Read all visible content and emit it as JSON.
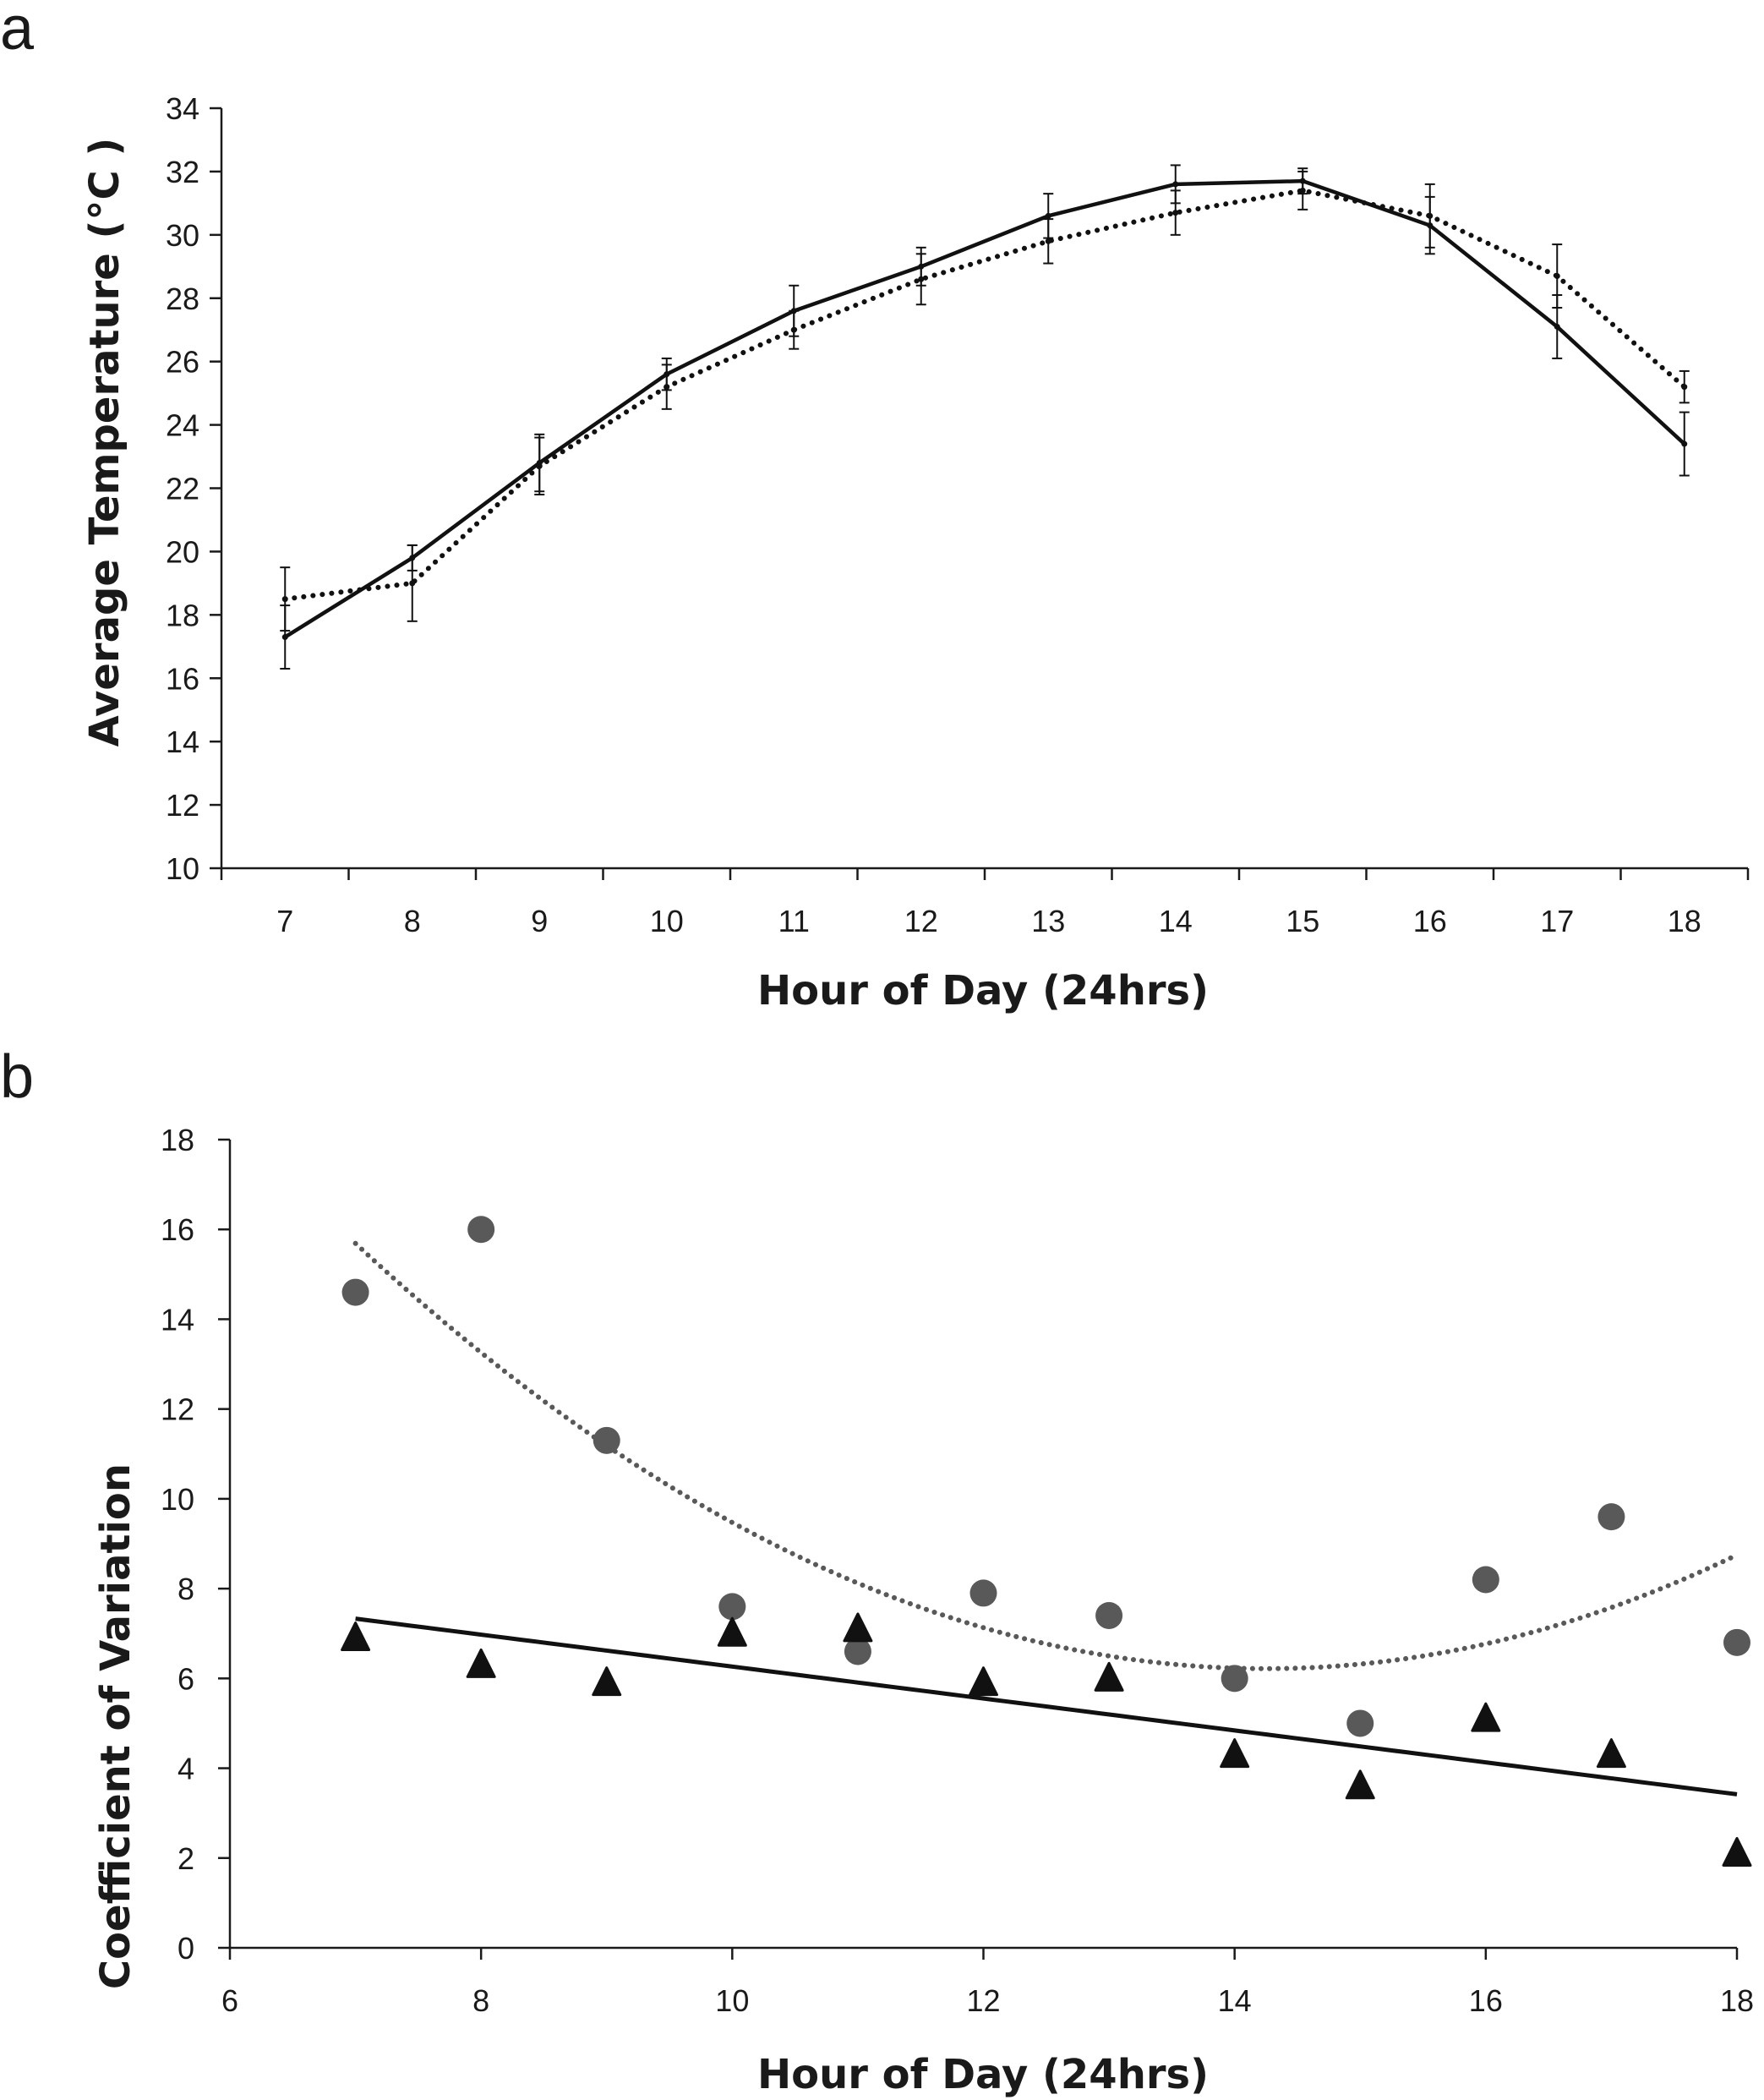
{
  "chart_data": [
    {
      "panel": "a",
      "type": "line",
      "xlabel": "Hour of Day (24hrs)",
      "ylabel": "Average Temperature (°C )",
      "categories": [
        7,
        8,
        9,
        10,
        11,
        12,
        13,
        14,
        15,
        16,
        17,
        18
      ],
      "ylim": [
        10,
        34
      ],
      "yticks": [
        10,
        12,
        14,
        16,
        18,
        20,
        22,
        24,
        26,
        28,
        30,
        32,
        34
      ],
      "grid": false,
      "series": [
        {
          "style": "solid",
          "color": "#111111",
          "values": [
            17.3,
            19.8,
            22.8,
            25.6,
            27.6,
            29.0,
            30.6,
            31.6,
            31.7,
            30.3,
            27.1,
            23.4
          ],
          "error": [
            1.0,
            0.4,
            0.9,
            0.5,
            0.8,
            0.6,
            0.7,
            0.6,
            0.4,
            0.9,
            1.0,
            1.0
          ]
        },
        {
          "style": "dotted",
          "color": "#111111",
          "values": [
            18.5,
            19.0,
            22.7,
            25.2,
            27.0,
            28.6,
            29.8,
            30.7,
            31.4,
            30.6,
            28.7,
            25.2
          ],
          "error": [
            1.0,
            1.2,
            0.9,
            0.7,
            0.6,
            0.8,
            0.7,
            0.7,
            0.6,
            1.0,
            1.0,
            0.5
          ]
        }
      ]
    },
    {
      "panel": "b",
      "type": "scatter",
      "xlabel": "Hour of Day (24hrs)",
      "ylabel": "Coefficient of Variation",
      "xlim": [
        6,
        18
      ],
      "xticks": [
        6,
        8,
        10,
        12,
        14,
        16,
        18
      ],
      "ylim": [
        0,
        18
      ],
      "yticks": [
        0,
        2,
        4,
        6,
        8,
        10,
        12,
        14,
        16,
        18
      ],
      "grid": false,
      "series": [
        {
          "marker": "circle",
          "color": "#595959",
          "trendline": "polynomial-2 dotted",
          "x": [
            7,
            8,
            9,
            10,
            11,
            12,
            13,
            14,
            15,
            16,
            17,
            18
          ],
          "y": [
            14.6,
            16.0,
            11.3,
            7.6,
            6.6,
            7.9,
            7.4,
            6.0,
            5.0,
            8.2,
            9.6,
            6.8
          ]
        },
        {
          "marker": "triangle",
          "color": "#111111",
          "trendline": "linear solid",
          "x": [
            7,
            8,
            9,
            10,
            11,
            12,
            13,
            14,
            15,
            16,
            17,
            18
          ],
          "y": [
            6.9,
            6.3,
            5.9,
            7.0,
            7.1,
            5.9,
            6.0,
            4.3,
            3.6,
            5.1,
            4.3,
            2.1
          ]
        }
      ]
    }
  ],
  "panels": {
    "a_label": "a",
    "b_label": "b"
  }
}
